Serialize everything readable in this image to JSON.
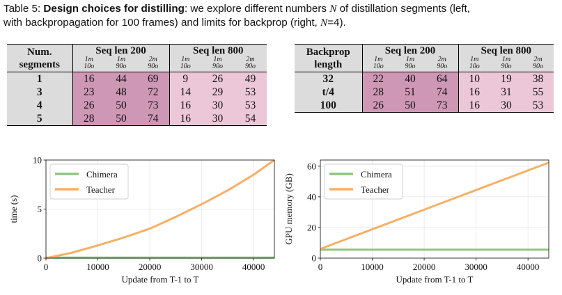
{
  "caption": {
    "prefix": "Table 5: ",
    "title": "Design choices for distilling",
    "text_a": ": we explore different numbers ",
    "n_symbol": "N",
    "text_b": " of distillation segments (left,",
    "line2_a": "with backpropagation for 100 frames) and limits for backprop (right, ",
    "line2_n": "N",
    "line2_b": "=4)."
  },
  "table_left": {
    "row_header": [
      "Num.",
      "segments"
    ],
    "groups": [
      "Seq len 200",
      "Seq len 800"
    ],
    "sub_top": [
      "1m",
      "1m",
      "2m",
      "1m",
      "1m",
      "2m"
    ],
    "sub_bottom": [
      "10o",
      "90o",
      "90o",
      "10o",
      "90o",
      "90o"
    ],
    "rows": [
      {
        "label": "1",
        "values": [
          "16",
          "44",
          "69",
          "9",
          "26",
          "49"
        ]
      },
      {
        "label": "3",
        "values": [
          "23",
          "48",
          "72",
          "14",
          "29",
          "53"
        ]
      },
      {
        "label": "4",
        "values": [
          "26",
          "50",
          "73",
          "16",
          "30",
          "53"
        ]
      },
      {
        "label": "5",
        "values": [
          "28",
          "50",
          "74",
          "16",
          "30",
          "54"
        ]
      }
    ]
  },
  "table_right": {
    "row_header": [
      "Backprop",
      "length"
    ],
    "groups": [
      "Seq len 200",
      "Seq len 800"
    ],
    "sub_top": [
      "1m",
      "1m",
      "2m",
      "1m",
      "1m",
      "2m"
    ],
    "sub_bottom": [
      "10o",
      "90o",
      "90o",
      "10o",
      "90o",
      "90o"
    ],
    "rows": [
      {
        "label": "32",
        "values": [
          "22",
          "40",
          "64",
          "10",
          "19",
          "38"
        ]
      },
      {
        "label": "t/4",
        "values": [
          "28",
          "51",
          "74",
          "16",
          "31",
          "55"
        ]
      },
      {
        "label": "100",
        "values": [
          "26",
          "50",
          "73",
          "16",
          "30",
          "53"
        ]
      }
    ]
  },
  "chart_data": [
    {
      "type": "line",
      "xlabel": "Update from T-1 to T",
      "ylabel": "time (s)",
      "xlim": [
        0,
        44000
      ],
      "ylim": [
        0,
        10
      ],
      "xticks": [
        "0",
        "10000",
        "20000",
        "30000",
        "40000"
      ],
      "yticks": [
        "0",
        "5",
        "10"
      ],
      "grid": true,
      "legend": "top-left",
      "series": [
        {
          "name": "Chimera",
          "color": "#8dc77b",
          "x": [
            0,
            10000,
            20000,
            30000,
            40000,
            44000
          ],
          "y": [
            0.05,
            0.05,
            0.05,
            0.05,
            0.05,
            0.05
          ]
        },
        {
          "name": "Teacher",
          "color": "#f5b067",
          "x": [
            0,
            5000,
            10000,
            15000,
            20000,
            25000,
            30000,
            35000,
            40000,
            44000
          ],
          "y": [
            0.0,
            0.55,
            1.3,
            2.1,
            3.0,
            4.2,
            5.5,
            6.9,
            8.5,
            10.0
          ]
        }
      ]
    },
    {
      "type": "line",
      "xlabel": "Update from T-1 to T",
      "ylabel": "GPU memory (GB)",
      "xlim": [
        0,
        44000
      ],
      "ylim": [
        0,
        64
      ],
      "xticks": [
        "0",
        "10000",
        "20000",
        "30000",
        "40000"
      ],
      "yticks": [
        "0",
        "20",
        "40",
        "60"
      ],
      "grid": true,
      "legend": "top-left",
      "series": [
        {
          "name": "Chimera",
          "color": "#8dc77b",
          "x": [
            0,
            10000,
            20000,
            30000,
            40000,
            44000
          ],
          "y": [
            5.5,
            5.5,
            5.5,
            5.5,
            5.5,
            5.5
          ]
        },
        {
          "name": "Teacher",
          "color": "#f5b067",
          "x": [
            0,
            10000,
            20000,
            30000,
            40000,
            44000
          ],
          "y": [
            6.0,
            18.8,
            31.6,
            44.4,
            57.2,
            62.3
          ]
        }
      ]
    }
  ]
}
